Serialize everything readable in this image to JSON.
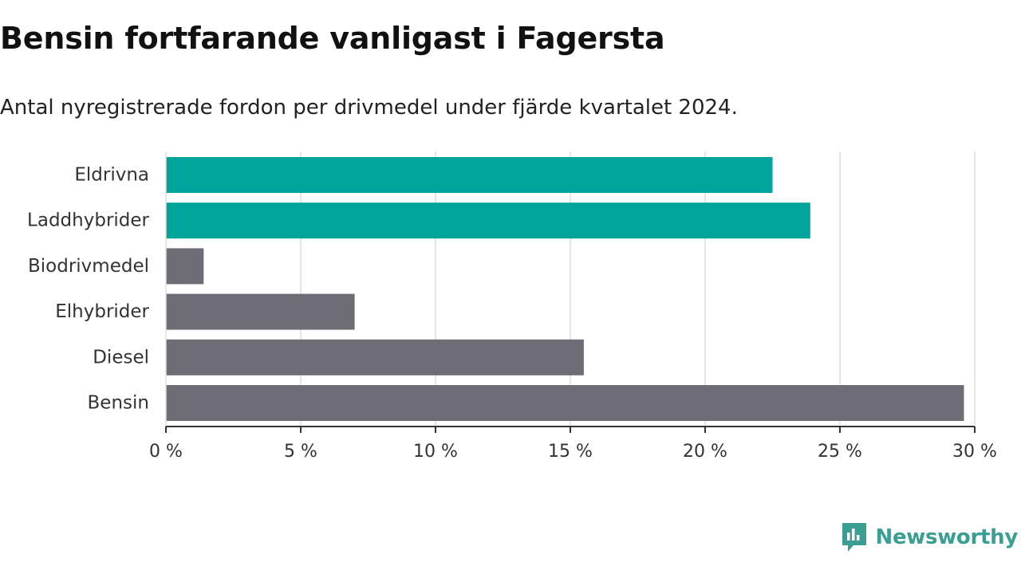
{
  "title": "Bensin fortfarande vanligast i Fagersta",
  "subtitle": "Antal nyregistrerade fordon per drivmedel under fjärde kvartalet 2024.",
  "brand": "Newsworthy",
  "colors": {
    "highlight": "#00a49a",
    "default": "#6e6d75",
    "grid": "#dddddd",
    "axis": "#333333",
    "brand": "#3a9e93"
  },
  "chart_data": {
    "type": "bar",
    "orientation": "horizontal",
    "categories": [
      "Eldrivna",
      "Laddhybrider",
      "Biodrivmedel",
      "Elhybrider",
      "Diesel",
      "Bensin"
    ],
    "values": [
      22.5,
      23.9,
      1.4,
      7.0,
      15.5,
      29.6
    ],
    "highlighted": [
      true,
      true,
      false,
      false,
      false,
      false
    ],
    "xlim": [
      0,
      30
    ],
    "xticks": [
      0,
      5,
      10,
      15,
      20,
      25,
      30
    ],
    "tick_labels": [
      "0 %",
      "5 %",
      "10 %",
      "15 %",
      "20 %",
      "25 %",
      "30 %"
    ],
    "grid": true,
    "xlabel": "",
    "ylabel": ""
  }
}
